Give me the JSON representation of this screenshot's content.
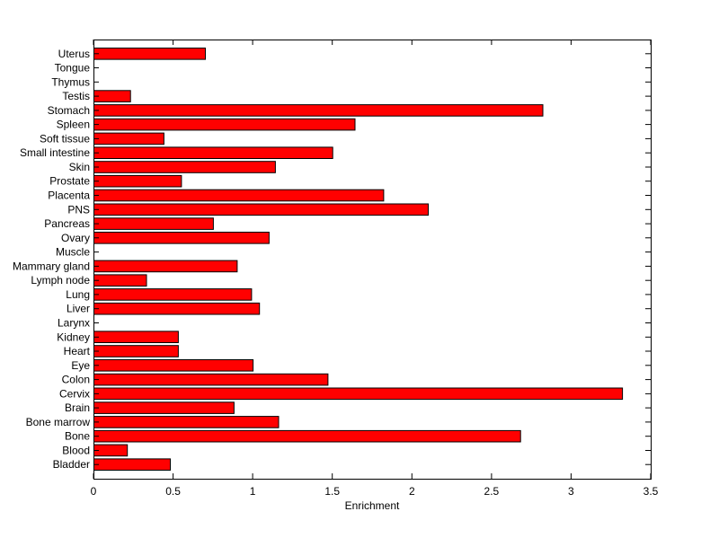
{
  "chart_data": {
    "type": "bar",
    "orientation": "horizontal",
    "title": "",
    "xlabel": "Enrichment",
    "ylabel": "",
    "xlim": [
      0,
      3.5
    ],
    "xticks": [
      "0",
      "0.5",
      "1",
      "1.5",
      "2",
      "2.5",
      "3",
      "3.5"
    ],
    "grid": false,
    "bar_color": "#ff0000",
    "categories": [
      "Bladder",
      "Blood",
      "Bone",
      "Bone marrow",
      "Brain",
      "Cervix",
      "Colon",
      "Eye",
      "Heart",
      "Kidney",
      "Larynx",
      "Liver",
      "Lung",
      "Lymph node",
      "Mammary gland",
      "Muscle",
      "Ovary",
      "Pancreas",
      "PNS",
      "Placenta",
      "Prostate",
      "Skin",
      "Small intestine",
      "Soft tissue",
      "Spleen",
      "Stomach",
      "Testis",
      "Thymus",
      "Tongue",
      "Uterus"
    ],
    "values": [
      0.48,
      0.21,
      2.68,
      1.16,
      0.88,
      3.32,
      1.47,
      1.0,
      0.53,
      0.53,
      0,
      1.04,
      0.99,
      0.33,
      0.9,
      0,
      1.1,
      0.75,
      2.1,
      1.82,
      0.55,
      1.14,
      1.5,
      0.44,
      1.64,
      2.82,
      0.23,
      0,
      0,
      0.7
    ]
  }
}
